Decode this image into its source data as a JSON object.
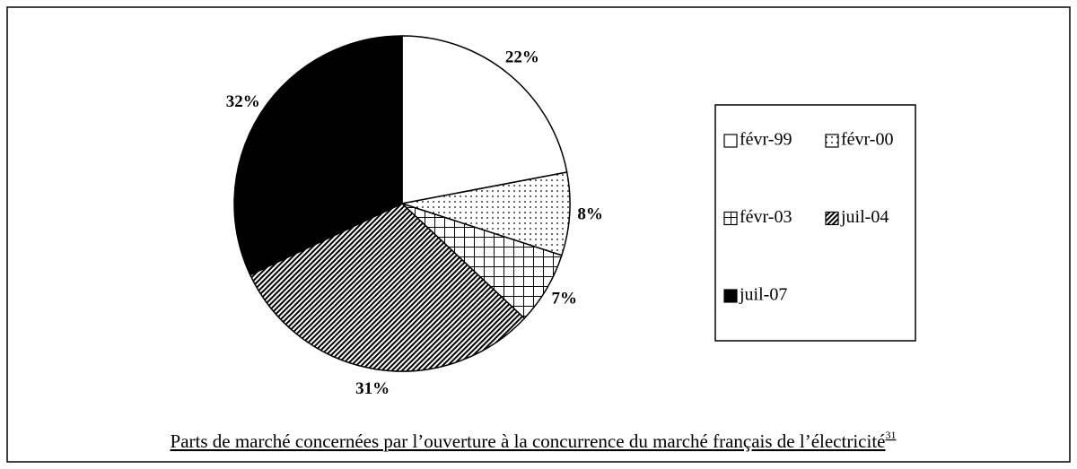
{
  "chart_data": {
    "type": "pie",
    "title": "Parts de marché concernées par l’ouverture à la concurrence du marché français de l’électricité",
    "footnote": "31",
    "categories": [
      "févr-99",
      "févr-00",
      "févr-03",
      "juil-04",
      "juil-07"
    ],
    "values": [
      22,
      8,
      7,
      31,
      32
    ],
    "value_labels": [
      "22%",
      "8%",
      "7%",
      "31%",
      "32%"
    ],
    "fills": [
      "white",
      "dots",
      "grid",
      "diagonal",
      "black"
    ],
    "legend": "right"
  }
}
